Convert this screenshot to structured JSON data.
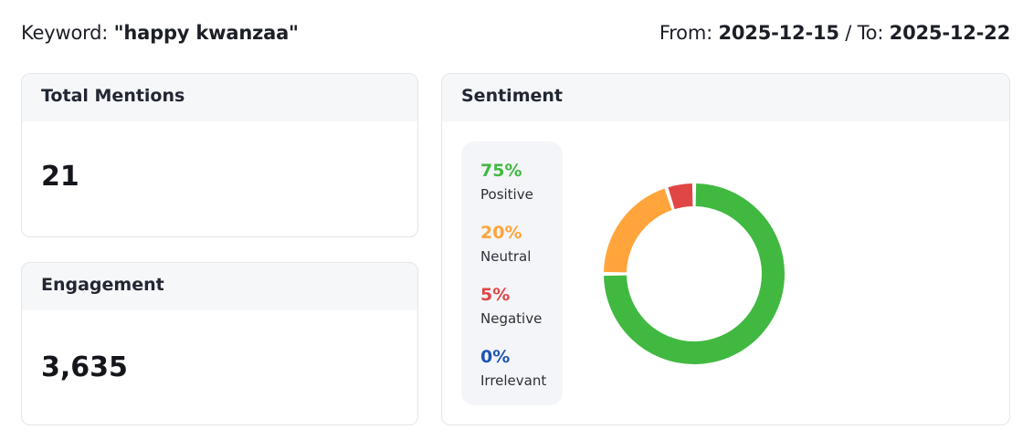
{
  "header": {
    "keyword_label": "Keyword: ",
    "keyword_value": "\"happy kwanzaa\"",
    "from_label": "From: ",
    "from_value": "2025-12-15",
    "to_label": " / To: ",
    "to_value": "2025-12-22"
  },
  "total_mentions": {
    "title": "Total Mentions",
    "value": "21"
  },
  "engagement": {
    "title": "Engagement",
    "value": "3,635"
  },
  "sentiment": {
    "title": "Sentiment",
    "items": [
      {
        "pct": "75%",
        "label": "Positive",
        "value": 75,
        "color": "#41b941"
      },
      {
        "pct": "20%",
        "label": "Neutral",
        "value": 20,
        "color": "#ffa53c"
      },
      {
        "pct": "5%",
        "label": "Negative",
        "value": 5,
        "color": "#e04646"
      },
      {
        "pct": "0%",
        "label": "Irrelevant",
        "value": 0,
        "color": "#1f55b4"
      }
    ]
  },
  "chart_data": {
    "type": "pie",
    "categories": [
      "Positive",
      "Neutral",
      "Negative",
      "Irrelevant"
    ],
    "values": [
      75,
      20,
      5,
      0
    ],
    "colors": [
      "#41b941",
      "#ffa53c",
      "#e04646",
      "#1f55b4"
    ],
    "title": "Sentiment"
  }
}
